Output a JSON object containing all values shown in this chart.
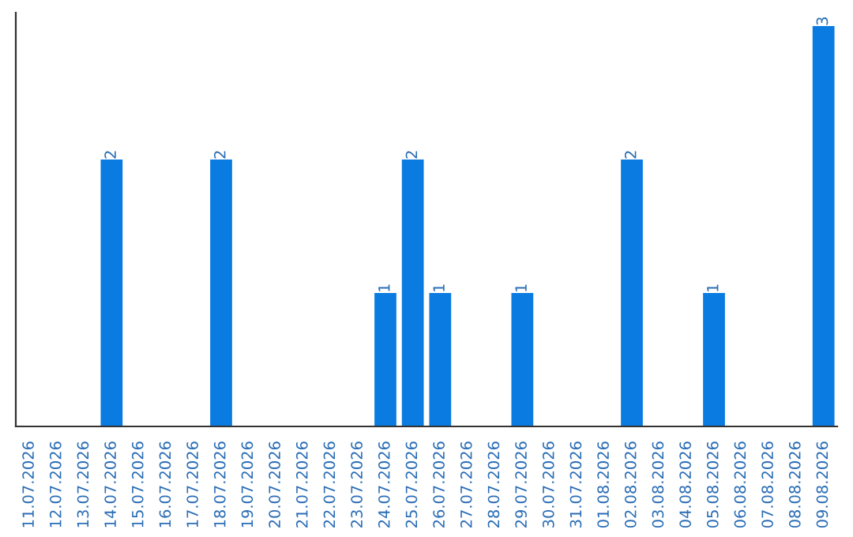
{
  "chart_data": {
    "type": "bar",
    "categories": [
      "11.07.2026",
      "12.07.2026",
      "13.07.2026",
      "14.07.2026",
      "15.07.2026",
      "16.07.2026",
      "17.07.2026",
      "18.07.2026",
      "19.07.2026",
      "20.07.2026",
      "21.07.2026",
      "22.07.2026",
      "23.07.2026",
      "24.07.2026",
      "25.07.2026",
      "26.07.2026",
      "27.07.2026",
      "28.07.2026",
      "29.07.2026",
      "30.07.2026",
      "31.07.2026",
      "01.08.2026",
      "02.08.2026",
      "03.08.2026",
      "04.08.2026",
      "05.08.2026",
      "06.08.2026",
      "07.08.2026",
      "08.08.2026",
      "09.08.2026"
    ],
    "values": [
      0,
      0,
      0,
      2,
      0,
      0,
      0,
      2,
      0,
      0,
      0,
      0,
      0,
      1,
      2,
      1,
      0,
      0,
      1,
      0,
      0,
      0,
      2,
      0,
      0,
      1,
      0,
      0,
      0,
      3
    ],
    "value_labels": [
      null,
      null,
      null,
      "2",
      null,
      null,
      null,
      "2",
      null,
      null,
      null,
      null,
      null,
      "1",
      "2",
      "1",
      null,
      null,
      "1",
      null,
      null,
      null,
      "2",
      null,
      null,
      "1",
      null,
      null,
      null,
      "3"
    ],
    "color": "#0a7be0",
    "ylim": [
      0,
      3.1
    ],
    "tick_labels": "x",
    "grid": false,
    "legend": false
  }
}
